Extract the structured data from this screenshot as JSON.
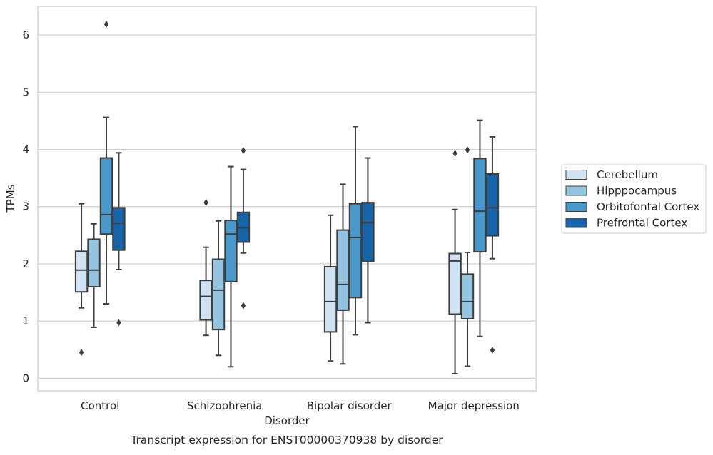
{
  "chart_data": {
    "type": "boxplot",
    "title": "",
    "xlabel": "Disorder",
    "ylabel": "TPMs",
    "caption": "Transcript expression for ENST00000370938 by disorder",
    "ylim": [
      -0.22,
      6.5
    ],
    "yticks": [
      0,
      1,
      2,
      3,
      4,
      5,
      6
    ],
    "grid": "horizontal",
    "legend_position": "right",
    "categories": [
      "Control",
      "Schizophrenia",
      "Bipolar disorder",
      "Major depression"
    ],
    "series": [
      {
        "name": "Cerebellum",
        "color": "#d0e1f2",
        "boxes": [
          {
            "whislo": 1.23,
            "q1": 1.51,
            "med": 1.89,
            "q3": 2.22,
            "whishi": 3.05,
            "fliers": [
              0.45
            ]
          },
          {
            "whislo": 0.75,
            "q1": 1.02,
            "med": 1.43,
            "q3": 1.71,
            "whishi": 2.29,
            "fliers": [
              3.07
            ]
          },
          {
            "whislo": 0.3,
            "q1": 0.81,
            "med": 1.34,
            "q3": 1.95,
            "whishi": 2.85,
            "fliers": []
          },
          {
            "whislo": 0.08,
            "q1": 1.12,
            "med": 2.05,
            "q3": 2.18,
            "whishi": 2.95,
            "fliers": [
              3.93
            ]
          }
        ]
      },
      {
        "name": "Hipppocampus",
        "color": "#94c4df",
        "boxes": [
          {
            "whislo": 0.89,
            "q1": 1.6,
            "med": 1.89,
            "q3": 2.43,
            "whishi": 2.7,
            "fliers": []
          },
          {
            "whislo": 0.4,
            "q1": 0.85,
            "med": 1.54,
            "q3": 2.08,
            "whishi": 2.75,
            "fliers": []
          },
          {
            "whislo": 0.25,
            "q1": 1.19,
            "med": 1.64,
            "q3": 2.59,
            "whishi": 3.39,
            "fliers": []
          },
          {
            "whislo": 0.21,
            "q1": 1.04,
            "med": 1.34,
            "q3": 1.82,
            "whishi": 2.2,
            "fliers": [
              3.99
            ]
          }
        ]
      },
      {
        "name": "Orbitofontal Cortex",
        "color": "#4a98c9",
        "boxes": [
          {
            "whislo": 1.3,
            "q1": 2.52,
            "med": 2.86,
            "q3": 3.85,
            "whishi": 4.56,
            "fliers": [
              6.19
            ]
          },
          {
            "whislo": 0.2,
            "q1": 1.69,
            "med": 2.52,
            "q3": 2.76,
            "whishi": 3.7,
            "fliers": []
          },
          {
            "whislo": 0.76,
            "q1": 1.41,
            "med": 2.46,
            "q3": 3.05,
            "whishi": 4.4,
            "fliers": []
          },
          {
            "whislo": 0.73,
            "q1": 2.21,
            "med": 2.92,
            "q3": 3.84,
            "whishi": 4.51,
            "fliers": []
          }
        ]
      },
      {
        "name": "Prefrontal Cortex",
        "color": "#1764ab",
        "boxes": [
          {
            "whislo": 1.9,
            "q1": 2.24,
            "med": 2.71,
            "q3": 2.98,
            "whishi": 3.94,
            "fliers": [
              0.97
            ]
          },
          {
            "whislo": 2.19,
            "q1": 2.38,
            "med": 2.63,
            "q3": 2.9,
            "whishi": 3.65,
            "fliers": [
              3.98,
              1.27
            ]
          },
          {
            "whislo": 0.97,
            "q1": 2.04,
            "med": 2.72,
            "q3": 3.07,
            "whishi": 3.85,
            "fliers": []
          },
          {
            "whislo": 2.09,
            "q1": 2.49,
            "med": 2.98,
            "q3": 3.57,
            "whishi": 4.22,
            "fliers": [
              0.49
            ]
          }
        ]
      }
    ]
  }
}
